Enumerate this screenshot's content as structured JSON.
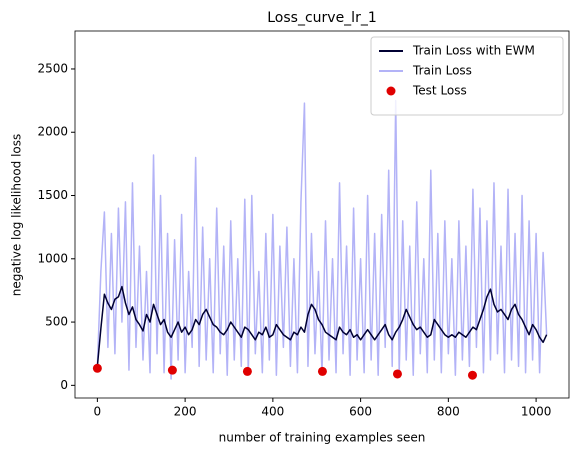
{
  "chart_data": {
    "type": "line",
    "title": "Loss_curve_lr_1",
    "x_label": "number of training examples seen",
    "y_label": "negative log likelihood loss",
    "x": [
      0,
      8,
      16,
      24,
      32,
      40,
      48,
      56,
      64,
      72,
      80,
      88,
      96,
      104,
      112,
      120,
      128,
      136,
      144,
      152,
      160,
      168,
      176,
      184,
      192,
      200,
      208,
      216,
      224,
      232,
      240,
      248,
      256,
      264,
      272,
      280,
      288,
      296,
      304,
      312,
      320,
      328,
      336,
      344,
      352,
      360,
      368,
      376,
      384,
      392,
      400,
      408,
      416,
      424,
      432,
      440,
      448,
      456,
      464,
      472,
      480,
      488,
      496,
      504,
      512,
      520,
      528,
      536,
      544,
      552,
      560,
      568,
      576,
      584,
      592,
      600,
      608,
      616,
      624,
      632,
      640,
      648,
      656,
      664,
      672,
      680,
      688,
      696,
      704,
      712,
      720,
      728,
      736,
      744,
      752,
      760,
      768,
      776,
      784,
      792,
      800,
      808,
      816,
      824,
      832,
      840,
      848,
      856,
      864,
      872,
      880,
      888,
      896,
      904,
      912,
      920,
      928,
      936,
      944,
      952,
      960,
      968,
      976,
      984,
      992,
      1000,
      1008,
      1016,
      1024
    ],
    "series": [
      {
        "name": "Train Loss with EWM",
        "type": "line",
        "color": "#000033",
        "values": [
          150,
          450,
          720,
          650,
          600,
          680,
          700,
          780,
          650,
          560,
          620,
          520,
          480,
          430,
          560,
          500,
          640,
          560,
          480,
          520,
          420,
          380,
          440,
          500,
          420,
          460,
          400,
          440,
          520,
          480,
          560,
          600,
          540,
          480,
          460,
          420,
          400,
          440,
          500,
          460,
          420,
          380,
          460,
          440,
          400,
          360,
          420,
          400,
          460,
          380,
          400,
          480,
          440,
          400,
          380,
          360,
          420,
          400,
          460,
          420,
          560,
          640,
          600,
          520,
          480,
          420,
          400,
          380,
          360,
          460,
          420,
          400,
          440,
          380,
          400,
          360,
          400,
          440,
          400,
          360,
          400,
          440,
          480,
          400,
          360,
          420,
          460,
          520,
          600,
          540,
          480,
          440,
          460,
          420,
          380,
          400,
          520,
          480,
          440,
          400,
          380,
          400,
          380,
          420,
          400,
          380,
          420,
          460,
          440,
          520,
          600,
          700,
          760,
          640,
          580,
          600,
          560,
          520,
          600,
          640,
          560,
          520,
          460,
          400,
          480,
          440,
          380,
          340,
          400
        ]
      },
      {
        "name": "Train Loss",
        "type": "line",
        "color": "#b3b3f7",
        "values": [
          150,
          900,
          1370,
          300,
          1200,
          250,
          1400,
          500,
          1450,
          120,
          1600,
          300,
          1100,
          200,
          900,
          100,
          1820,
          250,
          1500,
          100,
          1200,
          50,
          1150,
          200,
          1350,
          100,
          900,
          300,
          1800,
          150,
          1250,
          200,
          1000,
          100,
          1400,
          250,
          1100,
          80,
          1300,
          200,
          1000,
          150,
          1470,
          100,
          1500,
          250,
          900,
          100,
          1200,
          200,
          1350,
          80,
          1100,
          300,
          1250,
          150,
          1000,
          100,
          1450,
          2230,
          150,
          1200,
          250,
          900,
          100,
          1300,
          200,
          1000,
          100,
          1600,
          250,
          1100,
          80,
          1400,
          200,
          1000,
          100,
          1500,
          200,
          1200,
          80,
          1350,
          300,
          1700,
          150,
          2250,
          100,
          1300,
          200,
          1100,
          80,
          1450,
          250,
          1000,
          100,
          1700,
          200,
          1200,
          100,
          1300,
          250,
          1000,
          80,
          1300,
          200,
          1100,
          150,
          1550,
          300,
          1400,
          100,
          1300,
          200,
          1600,
          250,
          1100,
          100,
          1550,
          200,
          1200,
          150,
          1500,
          100,
          1300,
          200,
          1200,
          100,
          1050,
          400
        ]
      },
      {
        "name": "Test Loss",
        "type": "scatter",
        "color": "#e00000",
        "x": [
          0,
          171,
          342,
          513,
          684,
          855
        ],
        "values": [
          135,
          120,
          110,
          110,
          90,
          80
        ]
      }
    ],
    "xlim": [
      -51,
      1075
    ],
    "ylim": [
      -100,
      2800
    ],
    "xticks": [
      0,
      200,
      400,
      600,
      800,
      1000
    ],
    "yticks": [
      0,
      500,
      1000,
      1500,
      2000,
      2500
    ],
    "legend": "upper right"
  }
}
